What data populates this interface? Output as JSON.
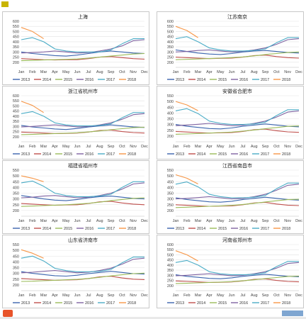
{
  "header": {
    "name": ""
  },
  "footer": {
    "note": ""
  },
  "common": {
    "months": [
      "Jan",
      "Feb",
      "Mar",
      "Apr",
      "May",
      "Jun",
      "Jul",
      "Aug",
      "Sep",
      "Oct",
      "Nov",
      "Dec"
    ],
    "series_names": [
      "2013",
      "2014",
      "2015",
      "2016",
      "2017",
      "2018"
    ],
    "series_colors": [
      "#3a64ad",
      "#c0504d",
      "#9bbb59",
      "#8064a2",
      "#4bacc6",
      "#f79646"
    ],
    "logo_color": "#e8542a"
  },
  "chart_data": [
    {
      "type": "line",
      "title": "上海",
      "ylim": [
        150,
        600
      ],
      "yticks": [
        200,
        250,
        300,
        350,
        400,
        450,
        500,
        550,
        600
      ],
      "series": [
        {
          "name": "2013",
          "values": [
            300,
            285,
            275,
            265,
            260,
            270,
            285,
            300,
            310,
            300,
            290,
            285
          ]
        },
        {
          "name": "2014",
          "values": [
            235,
            230,
            225,
            222,
            225,
            225,
            235,
            250,
            255,
            245,
            235,
            230
          ]
        },
        {
          "name": "2015",
          "values": [
            215,
            218,
            222,
            225,
            228,
            232,
            240,
            250,
            260,
            270,
            280,
            285
          ]
        },
        {
          "name": "2016",
          "values": [
            290,
            295,
            300,
            310,
            300,
            290,
            295,
            310,
            330,
            360,
            410,
            420
          ]
        },
        {
          "name": "2017",
          "values": [
            420,
            440,
            400,
            330,
            310,
            300,
            300,
            300,
            320,
            380,
            430,
            430
          ]
        },
        {
          "name": "2018",
          "values": [
            540,
            500,
            430,
            null,
            null,
            null,
            null,
            null,
            null,
            null,
            null,
            null
          ]
        }
      ]
    },
    {
      "type": "line",
      "title": "江苏南京",
      "ylim": [
        150,
        600
      ],
      "yticks": [
        200,
        250,
        300,
        350,
        400,
        450,
        500,
        550,
        600
      ],
      "series": [
        {
          "name": "2013",
          "values": [
            320,
            305,
            290,
            280,
            275,
            285,
            300,
            310,
            315,
            305,
            295,
            290
          ]
        },
        {
          "name": "2014",
          "values": [
            250,
            245,
            240,
            235,
            238,
            240,
            250,
            265,
            270,
            255,
            245,
            240
          ]
        },
        {
          "name": "2015",
          "values": [
            225,
            228,
            232,
            236,
            240,
            245,
            252,
            262,
            275,
            285,
            295,
            300
          ]
        },
        {
          "name": "2016",
          "values": [
            300,
            305,
            315,
            320,
            310,
            300,
            305,
            320,
            340,
            375,
            420,
            430
          ]
        },
        {
          "name": "2017",
          "values": [
            430,
            450,
            400,
            340,
            320,
            310,
            310,
            315,
            330,
            390,
            440,
            440
          ]
        },
        {
          "name": "2018",
          "values": [
            550,
            510,
            440,
            null,
            null,
            null,
            null,
            null,
            null,
            null,
            null,
            null
          ]
        }
      ]
    },
    {
      "type": "line",
      "title": "浙江省杭州市",
      "ylim": [
        150,
        600
      ],
      "yticks": [
        200,
        250,
        300,
        350,
        400,
        450,
        500,
        550,
        600
      ],
      "series": [
        {
          "name": "2013",
          "values": [
            310,
            295,
            285,
            275,
            270,
            280,
            295,
            305,
            315,
            305,
            295,
            290
          ]
        },
        {
          "name": "2014",
          "values": [
            245,
            240,
            235,
            230,
            232,
            235,
            245,
            260,
            265,
            250,
            240,
            235
          ]
        },
        {
          "name": "2015",
          "values": [
            220,
            222,
            226,
            230,
            234,
            238,
            246,
            256,
            268,
            278,
            288,
            292
          ]
        },
        {
          "name": "2016",
          "values": [
            295,
            300,
            308,
            315,
            305,
            295,
            300,
            315,
            335,
            370,
            415,
            425
          ]
        },
        {
          "name": "2017",
          "values": [
            425,
            445,
            400,
            335,
            315,
            305,
            305,
            310,
            325,
            385,
            435,
            435
          ]
        },
        {
          "name": "2018",
          "values": [
            545,
            505,
            435,
            null,
            null,
            null,
            null,
            null,
            null,
            null,
            null,
            null
          ]
        }
      ]
    },
    {
      "type": "line",
      "title": "安徽省合肥市",
      "ylim": [
        150,
        550
      ],
      "yticks": [
        200,
        250,
        300,
        350,
        400,
        450,
        500,
        550
      ],
      "series": [
        {
          "name": "2013",
          "values": [
            300,
            285,
            275,
            265,
            262,
            270,
            285,
            295,
            305,
            295,
            285,
            280
          ]
        },
        {
          "name": "2014",
          "values": [
            240,
            235,
            230,
            226,
            228,
            230,
            240,
            255,
            260,
            246,
            236,
            232
          ]
        },
        {
          "name": "2015",
          "values": [
            215,
            218,
            222,
            226,
            230,
            234,
            242,
            252,
            264,
            274,
            284,
            288
          ]
        },
        {
          "name": "2016",
          "values": [
            290,
            295,
            302,
            310,
            300,
            290,
            295,
            310,
            330,
            365,
            408,
            418
          ]
        },
        {
          "name": "2017",
          "values": [
            418,
            438,
            395,
            330,
            310,
            300,
            300,
            305,
            320,
            378,
            428,
            428
          ]
        },
        {
          "name": "2018",
          "values": [
            500,
            470,
            420,
            null,
            null,
            null,
            null,
            null,
            null,
            null,
            null,
            null
          ]
        }
      ]
    },
    {
      "type": "line",
      "title": "福建省福州市",
      "ylim": [
        150,
        550
      ],
      "yticks": [
        200,
        250,
        300,
        350,
        400,
        450,
        500,
        550
      ],
      "series": [
        {
          "name": "2013",
          "values": [
            330,
            315,
            300,
            290,
            285,
            295,
            310,
            320,
            325,
            315,
            305,
            300
          ]
        },
        {
          "name": "2014",
          "values": [
            260,
            255,
            250,
            245,
            248,
            250,
            260,
            275,
            280,
            265,
            255,
            250
          ]
        },
        {
          "name": "2015",
          "values": [
            235,
            238,
            242,
            246,
            250,
            255,
            262,
            272,
            285,
            295,
            305,
            310
          ]
        },
        {
          "name": "2016",
          "values": [
            310,
            315,
            325,
            330,
            320,
            310,
            315,
            330,
            350,
            385,
            430,
            440
          ]
        },
        {
          "name": "2017",
          "values": [
            440,
            455,
            410,
            350,
            330,
            320,
            320,
            325,
            340,
            400,
            450,
            450
          ]
        },
        {
          "name": "2018",
          "values": [
            500,
            480,
            450,
            null,
            null,
            null,
            null,
            null,
            null,
            null,
            null,
            null
          ]
        }
      ]
    },
    {
      "type": "line",
      "title": "江西省南昌市",
      "ylim": [
        150,
        550
      ],
      "yticks": [
        200,
        250,
        300,
        350,
        400,
        450,
        500,
        550
      ],
      "series": [
        {
          "name": "2013",
          "values": [
            310,
            295,
            285,
            275,
            272,
            280,
            295,
            305,
            315,
            305,
            295,
            290
          ]
        },
        {
          "name": "2014",
          "values": [
            250,
            245,
            240,
            236,
            238,
            240,
            250,
            265,
            270,
            256,
            246,
            242
          ]
        },
        {
          "name": "2015",
          "values": [
            225,
            228,
            232,
            236,
            240,
            244,
            252,
            262,
            274,
            284,
            294,
            298
          ]
        },
        {
          "name": "2016",
          "values": [
            300,
            305,
            312,
            320,
            310,
            300,
            305,
            320,
            340,
            375,
            418,
            428
          ]
        },
        {
          "name": "2017",
          "values": [
            428,
            448,
            405,
            340,
            320,
            310,
            310,
            315,
            330,
            388,
            438,
            438
          ]
        },
        {
          "name": "2018",
          "values": [
            510,
            480,
            430,
            null,
            null,
            null,
            null,
            null,
            null,
            null,
            null,
            null
          ]
        }
      ]
    },
    {
      "type": "line",
      "title": "山东省济南市",
      "ylim": [
        150,
        550
      ],
      "yticks": [
        200,
        250,
        300,
        350,
        400,
        450,
        500,
        550
      ],
      "series": [
        {
          "name": "2013",
          "values": [
            315,
            300,
            290,
            280,
            276,
            284,
            298,
            308,
            318,
            308,
            298,
            294
          ]
        },
        {
          "name": "2014",
          "values": [
            255,
            250,
            245,
            240,
            242,
            245,
            255,
            270,
            275,
            260,
            250,
            246
          ]
        },
        {
          "name": "2015",
          "values": [
            230,
            232,
            236,
            240,
            244,
            248,
            256,
            266,
            278,
            288,
            298,
            302
          ]
        },
        {
          "name": "2016",
          "values": [
            305,
            310,
            318,
            325,
            315,
            305,
            310,
            325,
            345,
            380,
            422,
            432
          ]
        },
        {
          "name": "2017",
          "values": [
            432,
            450,
            408,
            344,
            324,
            314,
            314,
            318,
            334,
            392,
            442,
            442
          ]
        },
        {
          "name": "2018",
          "values": [
            505,
            475,
            432,
            null,
            null,
            null,
            null,
            null,
            null,
            null,
            null,
            null
          ]
        }
      ]
    },
    {
      "type": "line",
      "title": "河南省郑州市",
      "ylim": [
        150,
        600
      ],
      "yticks": [
        200,
        250,
        300,
        350,
        400,
        450,
        500,
        550,
        600
      ],
      "series": [
        {
          "name": "2013",
          "values": [
            305,
            290,
            280,
            270,
            266,
            275,
            290,
            300,
            310,
            300,
            290,
            286
          ]
        },
        {
          "name": "2014",
          "values": [
            245,
            240,
            235,
            230,
            232,
            235,
            245,
            260,
            265,
            250,
            240,
            236
          ]
        },
        {
          "name": "2015",
          "values": [
            220,
            222,
            226,
            230,
            234,
            238,
            246,
            256,
            268,
            278,
            288,
            292
          ]
        },
        {
          "name": "2016",
          "values": [
            295,
            300,
            308,
            315,
            305,
            295,
            300,
            315,
            335,
            370,
            415,
            425
          ]
        },
        {
          "name": "2017",
          "values": [
            425,
            445,
            400,
            335,
            315,
            305,
            305,
            310,
            325,
            385,
            435,
            435
          ]
        },
        {
          "name": "2018",
          "values": [
            540,
            500,
            440,
            null,
            null,
            null,
            null,
            null,
            null,
            null,
            null,
            null
          ]
        }
      ]
    }
  ]
}
